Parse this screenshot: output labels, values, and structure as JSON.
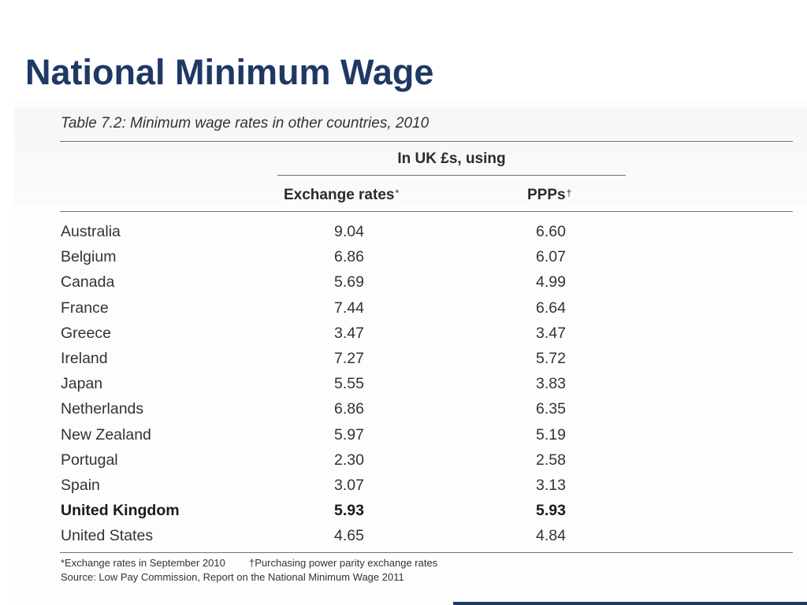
{
  "slide": {
    "title": "National Minimum Wage"
  },
  "table": {
    "caption": "Table 7.2: Minimum wage rates in other countries, 2010",
    "group_header": "In UK £s, using",
    "columns": {
      "exchange_label": "Exchange rates",
      "exchange_mark": "*",
      "ppp_label": "PPPs",
      "ppp_mark": "†"
    },
    "rows": [
      {
        "country": "Australia",
        "exchange": "9.04",
        "ppp": "6.60"
      },
      {
        "country": "Belgium",
        "exchange": "6.86",
        "ppp": "6.07"
      },
      {
        "country": "Canada",
        "exchange": "5.69",
        "ppp": "4.99"
      },
      {
        "country": "France",
        "exchange": "7.44",
        "ppp": "6.64"
      },
      {
        "country": "Greece",
        "exchange": "3.47",
        "ppp": "3.47"
      },
      {
        "country": "Ireland",
        "exchange": "7.27",
        "ppp": "5.72"
      },
      {
        "country": "Japan",
        "exchange": "5.55",
        "ppp": "3.83"
      },
      {
        "country": "Netherlands",
        "exchange": "6.86",
        "ppp": "6.35"
      },
      {
        "country": "New Zealand",
        "exchange": "5.97",
        "ppp": "5.19"
      },
      {
        "country": "Portugal",
        "exchange": "2.30",
        "ppp": "2.58"
      },
      {
        "country": "Spain",
        "exchange": "3.07",
        "ppp": "3.13"
      },
      {
        "country": "United Kingdom",
        "exchange": "5.93",
        "ppp": "5.93"
      },
      {
        "country": "United States",
        "exchange": "4.65",
        "ppp": "4.84"
      }
    ],
    "highlighted_country": "United Kingdom",
    "footnotes": {
      "exchange_note": "*Exchange rates in September 2010",
      "ppp_note": "†Purchasing power parity exchange rates",
      "source": "Source: Low Pay Commission, Report on the National Minimum Wage 2011"
    }
  },
  "colors": {
    "title": "#1f3864",
    "rule": "#6a7486",
    "text": "#333333"
  }
}
